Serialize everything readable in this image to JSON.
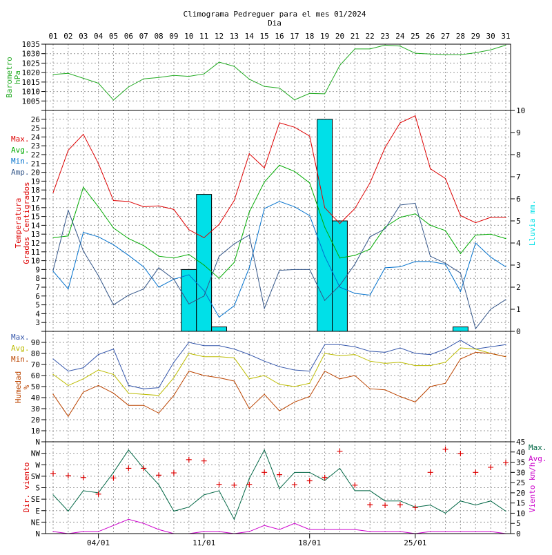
{
  "title": "Climograma Pedreguer para el mes 01/2024",
  "subtitle": "Dia",
  "colors": {
    "pressure": "#22aa22",
    "tmax": "#dd0000",
    "tavg": "#00aa00",
    "tmin": "#0070cc",
    "tamp": "#335588",
    "rain": "#00e0e8",
    "hmax": "#3355aa",
    "havg": "#bbbb00",
    "hmin": "#bb4400",
    "wdir": "#dd0000",
    "wmax": "#006644",
    "wavg": "#cc00cc"
  },
  "chart_data": [
    {
      "type": "line",
      "panel": "pressure",
      "ylabel": [
        "Barometro",
        "hPa"
      ],
      "ylim": [
        1000,
        1035
      ],
      "yticks": [
        "1005",
        "1010",
        "1015",
        "1020",
        "1025",
        "1030",
        "1035"
      ],
      "x": [
        "01",
        "02",
        "03",
        "04",
        "05",
        "06",
        "07",
        "08",
        "09",
        "10",
        "11",
        "12",
        "13",
        "14",
        "15",
        "16",
        "17",
        "18",
        "19",
        "20",
        "21",
        "22",
        "23",
        "24",
        "25",
        "26",
        "27",
        "28",
        "29",
        "30",
        "31"
      ],
      "series": [
        {
          "values": [
            1019.0,
            1019.6,
            1017.0,
            1014.4,
            1005.5,
            1012.4,
            1016.7,
            1017.4,
            1018.5,
            1018.0,
            1019.3,
            1025.5,
            1023.3,
            1016.5,
            1012.7,
            1011.8,
            1005.6,
            1009.0,
            1008.8,
            1023.8,
            1032.5,
            1032.5,
            1034.5,
            1034.0,
            1030.2,
            1029.8,
            1029.4,
            1029.4,
            1030.5,
            1032.0,
            1034.5
          ]
        }
      ]
    },
    {
      "type": "line",
      "panel": "temperature",
      "ylabel": [
        "Temperatura",
        "Grados Centigrados"
      ],
      "ylabel2": "Lluvia mm.",
      "ylim": [
        2,
        27
      ],
      "y2lim": [
        0,
        10
      ],
      "yticks": [
        "3",
        "4",
        "5",
        "6",
        "7",
        "8",
        "9",
        "10",
        "11",
        "12",
        "13",
        "14",
        "15",
        "16",
        "17",
        "18",
        "19",
        "20",
        "21",
        "22",
        "23",
        "24",
        "25",
        "26"
      ],
      "y2ticks": [
        "0",
        "1",
        "2",
        "3",
        "4",
        "5",
        "6",
        "7",
        "8",
        "9",
        "10"
      ],
      "legend": [
        "Max.",
        "Avg.",
        "Min.",
        "Amp."
      ],
      "series": [
        {
          "name": "Max.",
          "values": [
            17.7,
            22.5,
            24.3,
            21.0,
            16.8,
            16.7,
            16.1,
            16.2,
            15.8,
            13.5,
            12.6,
            14.1,
            16.8,
            22.1,
            20.5,
            25.6,
            25.1,
            24.1,
            16.0,
            14.2,
            15.9,
            18.8,
            22.8,
            25.6,
            26.4,
            20.4,
            19.3,
            15.1,
            14.3,
            14.9,
            14.9
          ]
        },
        {
          "name": "Avg.",
          "values": [
            12.6,
            12.8,
            18.3,
            16.1,
            13.7,
            12.5,
            11.7,
            10.5,
            10.3,
            10.7,
            9.5,
            8.0,
            9.8,
            15.5,
            18.9,
            20.8,
            20.1,
            18.8,
            13.8,
            10.3,
            10.6,
            11.3,
            13.8,
            14.9,
            15.3,
            14.0,
            13.4,
            10.8,
            12.9,
            13.0,
            12.5
          ]
        },
        {
          "name": "Min.",
          "values": [
            8.8,
            6.8,
            13.2,
            12.7,
            11.8,
            10.6,
            9.3,
            7.0,
            7.9,
            8.4,
            6.6,
            3.6,
            4.9,
            9.2,
            15.9,
            16.7,
            16.1,
            15.1,
            10.5,
            7.0,
            6.3,
            6.1,
            9.2,
            9.3,
            9.9,
            9.9,
            9.6,
            6.5,
            12.0,
            10.4,
            9.3
          ]
        },
        {
          "name": "Amp.",
          "values": [
            8.9,
            15.7,
            11.1,
            8.3,
            5.0,
            6.1,
            6.8,
            9.2,
            7.9,
            5.1,
            6.0,
            10.5,
            11.9,
            12.9,
            4.6,
            8.9,
            9.0,
            9.0,
            5.5,
            7.2,
            9.6,
            12.7,
            13.6,
            16.3,
            16.5,
            10.5,
            9.7,
            8.6,
            2.3,
            4.5,
            5.6
          ]
        }
      ],
      "rain": [
        0,
        0,
        0,
        0,
        0,
        0,
        0,
        0,
        0,
        2.8,
        6.2,
        0.2,
        0,
        0,
        0,
        0,
        0,
        0,
        9.6,
        5.0,
        0,
        0,
        0,
        0,
        0,
        0,
        0,
        0.2,
        0,
        0,
        0
      ]
    },
    {
      "type": "line",
      "panel": "humidity",
      "ylabel": [
        "Humedad",
        "%"
      ],
      "ylim": [
        0,
        100
      ],
      "yticks": [
        "10",
        "20",
        "30",
        "40",
        "50",
        "60",
        "70",
        "80",
        "90"
      ],
      "legend": [
        "Max.",
        "Avg.",
        "Min."
      ],
      "series": [
        {
          "name": "Max.",
          "values": [
            75,
            64,
            67,
            79,
            84,
            51,
            48,
            49,
            72,
            90,
            87,
            87,
            84,
            79,
            73,
            68,
            65,
            64,
            88,
            88,
            86,
            82,
            81,
            85,
            80,
            79,
            84,
            92,
            84,
            86,
            88
          ]
        },
        {
          "name": "Avg.",
          "values": [
            61,
            51,
            57,
            65,
            61,
            44,
            43,
            42,
            58,
            80,
            77,
            77,
            76,
            57,
            60,
            52,
            50,
            53,
            80,
            78,
            79,
            73,
            71,
            72,
            69,
            69,
            72,
            85,
            84,
            80,
            77
          ]
        },
        {
          "name": "Min.",
          "values": [
            43,
            23,
            45,
            51,
            44,
            33,
            33,
            26,
            42,
            64,
            60,
            58,
            55,
            30,
            43,
            28,
            36,
            41,
            64,
            57,
            60,
            48,
            47,
            41,
            36,
            50,
            53,
            75,
            81,
            80,
            77
          ]
        }
      ]
    },
    {
      "type": "line",
      "panel": "wind",
      "ylabel": "Dir. viento",
      "ylabel2": "Viento km/h",
      "dir_ticks": [
        "N",
        "NE",
        "E",
        "SE",
        "S",
        "SW",
        "W",
        "NW",
        "N"
      ],
      "y2lim": [
        0,
        45
      ],
      "y2ticks": [
        "0",
        "5",
        "10",
        "15",
        "20",
        "25",
        "30",
        "35",
        "40",
        "45"
      ],
      "legend": [
        "Max.",
        "Avg."
      ],
      "direction_deg": [
        236,
        227,
        220,
        155,
        218,
        256,
        256,
        229,
        238,
        290,
        285,
        193,
        190,
        193,
        240,
        231,
        192,
        207,
        220,
        323,
        190,
        113,
        111,
        113,
        102,
        240,
        331,
        314,
        240,
        260,
        278
      ],
      "series": [
        {
          "name": "Max.",
          "values": [
            19,
            11,
            21,
            20,
            30,
            41,
            32,
            24,
            11,
            13,
            19,
            21,
            7,
            27,
            41,
            22,
            30,
            30,
            26,
            32,
            21,
            21,
            16,
            16,
            13,
            14,
            10,
            16,
            14,
            16,
            11
          ]
        },
        {
          "name": "Avg.",
          "values": [
            1,
            0,
            1,
            1,
            4,
            7,
            5,
            2,
            0,
            0,
            1,
            1,
            0,
            1,
            4,
            2,
            5,
            2,
            2,
            2,
            2,
            1,
            1,
            1,
            0,
            1,
            1,
            1,
            1,
            1,
            0
          ]
        }
      ]
    }
  ],
  "xaxis": {
    "days": [
      "01",
      "02",
      "03",
      "04",
      "05",
      "06",
      "07",
      "08",
      "09",
      "10",
      "11",
      "12",
      "13",
      "14",
      "15",
      "16",
      "17",
      "18",
      "19",
      "20",
      "21",
      "22",
      "23",
      "24",
      "25",
      "26",
      "27",
      "28",
      "29",
      "30",
      "31"
    ],
    "dates": [
      "04/01",
      "11/01",
      "18/01",
      "25/01"
    ],
    "date_index": [
      3,
      10,
      17,
      24
    ]
  }
}
